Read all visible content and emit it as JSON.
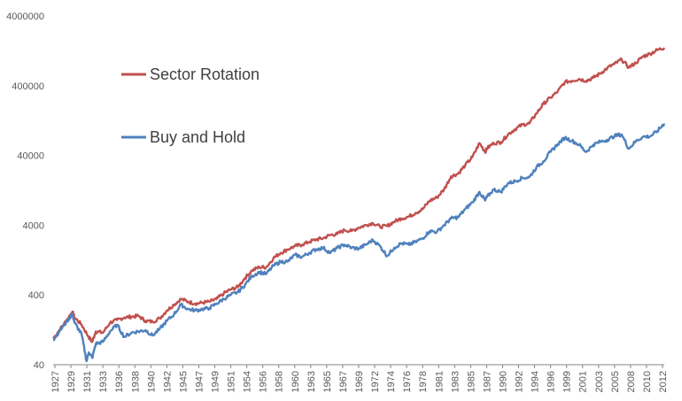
{
  "chart_data": {
    "type": "line",
    "title": "",
    "xlabel": "",
    "ylabel": "",
    "y_scale": "log",
    "ylim": [
      40,
      4000000
    ],
    "xlim": [
      1927,
      2013
    ],
    "y_ticks": [
      40,
      400,
      4000,
      40000,
      400000,
      4000000
    ],
    "y_tick_labels": [
      "40",
      "400",
      "4000",
      "40000",
      "400000",
      "4000000"
    ],
    "x_tick_labels": [
      "1927",
      "1929",
      "1931",
      "1933",
      "1936",
      "1938",
      "1940",
      "1942",
      "1945",
      "1947",
      "1949",
      "1951",
      "1954",
      "1956",
      "1958",
      "1960",
      "1963",
      "1965",
      "1967",
      "1969",
      "1972",
      "1974",
      "1976",
      "1978",
      "1981",
      "1983",
      "1985",
      "1987",
      "1990",
      "1992",
      "1994",
      "1996",
      "1999",
      "2001",
      "2003",
      "2005",
      "2008",
      "2010",
      "2012"
    ],
    "grid": false,
    "legend_position": "upper-left",
    "series": [
      {
        "name": "Sector Rotation",
        "color": "#C0504D",
        "x": [
          1927,
          1928,
          1929,
          1929.7,
          1930,
          1931,
          1932,
          1932.5,
          1933,
          1934,
          1935,
          1936,
          1937,
          1938,
          1939,
          1940,
          1941,
          1942,
          1943,
          1944,
          1945,
          1946,
          1947,
          1948,
          1949,
          1950,
          1951,
          1952,
          1953,
          1954,
          1955,
          1956,
          1957,
          1958,
          1959,
          1960,
          1961,
          1962,
          1963,
          1964,
          1965,
          1966,
          1967,
          1968,
          1969,
          1970,
          1971,
          1972,
          1973,
          1974,
          1975,
          1976,
          1977,
          1978,
          1979,
          1980,
          1981,
          1982,
          1983,
          1984,
          1985,
          1986,
          1987,
          1987.8,
          1988,
          1989,
          1990,
          1991,
          1992,
          1993,
          1994,
          1995,
          1996,
          1997,
          1998,
          1999,
          2000,
          2001,
          2002,
          2003,
          2004,
          2005,
          2006,
          2007,
          2008,
          2009,
          2010,
          2011,
          2012,
          2013
        ],
        "values": [
          95,
          130,
          180,
          230,
          190,
          150,
          100,
          85,
          120,
          115,
          160,
          175,
          190,
          195,
          200,
          170,
          165,
          185,
          240,
          290,
          350,
          320,
          300,
          310,
          320,
          350,
          420,
          480,
          520,
          700,
          900,
          1000,
          1000,
          1350,
          1600,
          1800,
          2000,
          2100,
          2300,
          2500,
          2600,
          2900,
          3000,
          3400,
          3300,
          3700,
          4000,
          4300,
          3800,
          3900,
          4500,
          5000,
          5300,
          6000,
          6800,
          9000,
          10000,
          13000,
          20000,
          22000,
          29000,
          38000,
          60000,
          45000,
          50000,
          60000,
          62000,
          80000,
          95000,
          110000,
          115000,
          160000,
          220000,
          270000,
          330000,
          450000,
          470000,
          500000,
          470000,
          520000,
          600000,
          720000,
          820000,
          950000,
          730000,
          850000,
          1050000,
          1150000,
          1300000,
          1400000
        ]
      },
      {
        "name": "Buy and Hold",
        "color": "#4F81BD",
        "x": [
          1927,
          1928,
          1929,
          1929.7,
          1930,
          1931,
          1931.7,
          1932,
          1932.5,
          1933,
          1934,
          1935,
          1936,
          1937,
          1938,
          1939,
          1940,
          1941,
          1942,
          1943,
          1944,
          1945,
          1946,
          1947,
          1948,
          1949,
          1950,
          1951,
          1952,
          1953,
          1954,
          1955,
          1956,
          1957,
          1958,
          1959,
          1960,
          1961,
          1962,
          1963,
          1964,
          1965,
          1966,
          1967,
          1968,
          1969,
          1970,
          1971,
          1972,
          1973,
          1974,
          1975,
          1976,
          1977,
          1978,
          1979,
          1980,
          1981,
          1982,
          1983,
          1984,
          1985,
          1986,
          1987,
          1987.8,
          1988,
          1989,
          1990,
          1991,
          1992,
          1993,
          1994,
          1995,
          1996,
          1997,
          1998,
          1999,
          2000,
          2001,
          2002,
          2003,
          2004,
          2005,
          2006,
          2007,
          2008,
          2009,
          2010,
          2011,
          2012,
          2013
        ],
        "values": [
          90,
          125,
          170,
          215,
          160,
          110,
          45,
          60,
          50,
          80,
          85,
          120,
          150,
          100,
          115,
          120,
          125,
          105,
          130,
          170,
          210,
          290,
          250,
          240,
          250,
          260,
          300,
          350,
          400,
          440,
          560,
          750,
          850,
          800,
          1050,
          1200,
          1200,
          1500,
          1400,
          1600,
          1800,
          1900,
          1600,
          1900,
          2100,
          1900,
          1850,
          2100,
          2450,
          2000,
          1450,
          1900,
          2200,
          2100,
          2300,
          2600,
          3300,
          3200,
          4000,
          5000,
          5200,
          6800,
          8500,
          12000,
          9000,
          10000,
          13000,
          12000,
          16000,
          17000,
          19000,
          19500,
          27000,
          33000,
          45000,
          58000,
          72000,
          65000,
          57000,
          45000,
          57000,
          63000,
          67000,
          76000,
          80000,
          50000,
          64000,
          74000,
          75000,
          89000,
          115000
        ]
      }
    ]
  }
}
